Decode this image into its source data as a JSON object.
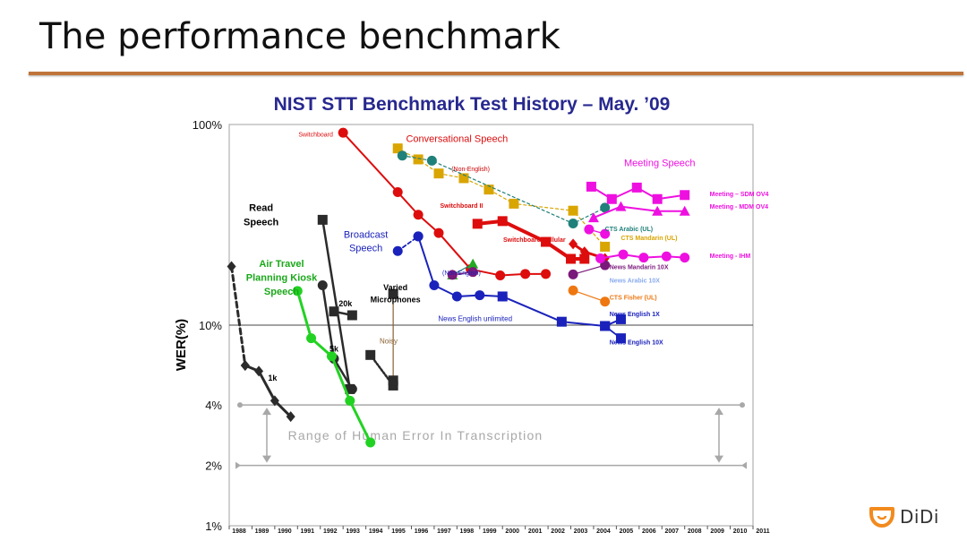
{
  "slide": {
    "title": "The performance benchmark"
  },
  "logo": {
    "text": "DiDi"
  },
  "chart_data": {
    "type": "line",
    "title": "NIST STT Benchmark Test History – May. ’09",
    "ylabel": "WER(%)",
    "yscale": "log",
    "ylim": [
      1,
      100
    ],
    "xlim": [
      1988,
      2011
    ],
    "x_ticks": [
      "1988",
      "1989",
      "1990",
      "1991",
      "1992",
      "1993",
      "1994",
      "1995",
      "1996",
      "1997",
      "1998",
      "1999",
      "2000",
      "2001",
      "2002",
      "2003",
      "2004",
      "2005",
      "2006",
      "2007",
      "2008",
      "2009",
      "2010",
      "2011"
    ],
    "y_ticks": [
      {
        "label": "100%",
        "value": 100
      },
      {
        "label": "10%",
        "value": 10
      },
      {
        "label": "4%",
        "value": 4
      },
      {
        "label": "2%",
        "value": 2
      },
      {
        "label": "1%",
        "value": 1
      }
    ],
    "human_range": {
      "label": "Range of Human Error In Transcription",
      "low": 2,
      "high": 4
    },
    "colors": {
      "title": "#27288f",
      "frame": "#b0b0b0",
      "read": "#2b2b2b",
      "kiosk": "#22d222",
      "switchboard": "#dd0d0d",
      "broadcast": "#1a22bb",
      "meeting": "#ee10e0",
      "cts": "#d9a500",
      "teal": "#20807a",
      "purple": "#7a1a7a",
      "fisher": "#ee7711",
      "brown": "#8a6030"
    },
    "annotations": [
      {
        "text": "Read",
        "x": 1989.4,
        "y": 37,
        "color": "#000000",
        "size": 11,
        "bold": true
      },
      {
        "text": "Speech",
        "x": 1989.4,
        "y": 31.5,
        "color": "#000000",
        "size": 11,
        "bold": true
      },
      {
        "text": "Air Travel",
        "x": 1990.3,
        "y": 19.5,
        "color": "#1aa81a",
        "size": 11,
        "bold": true
      },
      {
        "text": "Planning Kiosk",
        "x": 1990.3,
        "y": 16.6,
        "color": "#1aa81a",
        "size": 11,
        "bold": true
      },
      {
        "text": "Speech",
        "x": 1990.3,
        "y": 14.2,
        "color": "#1aa81a",
        "size": 11,
        "bold": true
      },
      {
        "text": "Broadcast",
        "x": 1994.0,
        "y": 27.2,
        "color": "#1a22bb",
        "size": 11,
        "bold": false
      },
      {
        "text": "Speech",
        "x": 1994.0,
        "y": 23.3,
        "color": "#1a22bb",
        "size": 11,
        "bold": false
      },
      {
        "text": "Varied",
        "x": 1995.3,
        "y": 14.9,
        "color": "#000000",
        "size": 9,
        "bold": true
      },
      {
        "text": "Microphones",
        "x": 1995.3,
        "y": 13.0,
        "color": "#000000",
        "size": 9,
        "bold": true
      },
      {
        "text": "Conversational Speech",
        "x": 1998.0,
        "y": 82,
        "color": "#dd0d0d",
        "size": 11,
        "bold": false
      },
      {
        "text": "Meeting Speech",
        "x": 2006.9,
        "y": 62,
        "color": "#ee10e0",
        "size": 11,
        "bold": false
      },
      {
        "text": "Switchboard",
        "x": 1991.8,
        "y": 87,
        "color": "#dd0d0d",
        "size": 7,
        "bold": false
      },
      {
        "text": "(Non-English)",
        "x": 1998.6,
        "y": 58.5,
        "color": "#cc0000",
        "size": 7,
        "bold": false
      },
      {
        "text": "Switchboard II",
        "x": 1998.2,
        "y": 38.5,
        "color": "#dd0d0d",
        "size": 7,
        "bold": true
      },
      {
        "text": "Switchboard Cellular",
        "x": 2001.4,
        "y": 26,
        "color": "#dd0d0d",
        "size": 7,
        "bold": true
      },
      {
        "text": "(Non-English)",
        "x": 1998.2,
        "y": 17.8,
        "color": "#1a22bb",
        "size": 7,
        "bold": false
      },
      {
        "text": "News English unlimited",
        "x": 1998.8,
        "y": 10.5,
        "color": "#1a22bb",
        "size": 8,
        "bold": false
      },
      {
        "text": "Noisy",
        "x": 1995.0,
        "y": 8.1,
        "color": "#8a6030",
        "size": 8,
        "bold": false
      },
      {
        "text": "20k",
        "x": 1993.1,
        "y": 12.4,
        "color": "#000000",
        "size": 9,
        "bold": true
      },
      {
        "text": "5k",
        "x": 1992.6,
        "y": 7.4,
        "color": "#000000",
        "size": 9,
        "bold": true
      },
      {
        "text": "1k",
        "x": 1989.9,
        "y": 5.3,
        "color": "#000000",
        "size": 9,
        "bold": true
      }
    ],
    "series_labels": [
      {
        "text": "Meeting – SDM OV4",
        "x": 2009.1,
        "y": 44,
        "color": "#ee10e0"
      },
      {
        "text": "Meeting - MDM OV4",
        "x": 2009.1,
        "y": 38,
        "color": "#ee10e0"
      },
      {
        "text": "Meeting - IHM",
        "x": 2009.1,
        "y": 21.6,
        "color": "#ee10e0"
      },
      {
        "text": "CTS Arabic (UL)",
        "x": 2004.5,
        "y": 29.4,
        "color": "#20807a"
      },
      {
        "text": "CTS Mandarin (UL)",
        "x": 2005.2,
        "y": 26.6,
        "color": "#d9a500"
      },
      {
        "text": "News Mandarin 10X",
        "x": 2004.7,
        "y": 19.0,
        "color": "#7a1a7a"
      },
      {
        "text": "News Arabic 10X",
        "x": 2004.7,
        "y": 16.3,
        "color": "#88aaee"
      },
      {
        "text": "CTS Fisher (UL)",
        "x": 2004.7,
        "y": 13.4,
        "color": "#ee7711"
      },
      {
        "text": "News English 1X",
        "x": 2004.7,
        "y": 11.1,
        "color": "#1a22bb"
      },
      {
        "text": "News English 10X",
        "x": 2004.7,
        "y": 8.0,
        "color": "#1a22bb"
      }
    ],
    "series": [
      {
        "color": "#2b2b2b",
        "marker": "diamond",
        "dash": "6,4",
        "width": 3,
        "points": [
          [
            1988.1,
            19.6
          ],
          [
            1988.7,
            6.3
          ]
        ]
      },
      {
        "color": "#2b2b2b",
        "marker": "diamond",
        "dash": "",
        "width": 3,
        "points": [
          [
            1988.7,
            6.3
          ],
          [
            1989.3,
            5.9
          ],
          [
            1990.0,
            4.2
          ],
          [
            1990.7,
            3.5
          ]
        ]
      },
      {
        "color": "#2b2b2b",
        "marker": "square",
        "dash": "",
        "width": 2.5,
        "points": [
          [
            1992.1,
            33.5
          ],
          [
            1993.3,
            4.8
          ]
        ]
      },
      {
        "color": "#2b2b2b",
        "marker": "square",
        "dash": "",
        "width": 2.5,
        "points": [
          [
            1992.6,
            11.7
          ],
          [
            1993.4,
            11.2
          ]
        ]
      },
      {
        "color": "#2b2b2b",
        "marker": "circle",
        "dash": "",
        "width": 2.5,
        "points": [
          [
            1992.1,
            15.8
          ],
          [
            1992.6,
            6.8
          ],
          [
            1993.4,
            4.8
          ]
        ]
      },
      {
        "color": "#2b2b2b",
        "marker": "square",
        "dash": "2,2",
        "width": 2.5,
        "points": [
          [
            1994.2,
            7.1
          ],
          [
            1995.2,
            5.0
          ]
        ]
      },
      {
        "color": "#8a6030",
        "marker": "square",
        "dash": "",
        "width": 1.2,
        "points": [
          [
            1995.2,
            14.3
          ],
          [
            1995.2,
            5.3
          ]
        ],
        "marker_color": "#2b2b2b"
      },
      {
        "color": "#22d222",
        "marker": "circle",
        "dash": "",
        "width": 3,
        "points": [
          [
            1991.0,
            14.8
          ],
          [
            1991.6,
            8.6
          ],
          [
            1992.5,
            7.0
          ],
          [
            1993.3,
            4.2
          ],
          [
            1994.2,
            2.6
          ]
        ]
      },
      {
        "color": "#dd0d0d",
        "marker": "circle",
        "dash": "",
        "width": 2,
        "points": [
          [
            1993.0,
            91
          ],
          [
            1995.4,
            46
          ],
          [
            1996.3,
            35.5
          ],
          [
            1997.2,
            28.8
          ],
          [
            1998.6,
            19.0
          ],
          [
            1999.9,
            17.7
          ],
          [
            2001.0,
            18.0
          ],
          [
            2001.9,
            18.0
          ]
        ]
      },
      {
        "color": "#dd0d0d",
        "marker": "square",
        "dash": "",
        "width": 4,
        "points": [
          [
            1998.9,
            32.0
          ],
          [
            2000.0,
            33.0
          ],
          [
            2001.9,
            26.0
          ],
          [
            2003.0,
            21.4
          ],
          [
            2003.6,
            21.4
          ]
        ]
      },
      {
        "color": "#dd0d0d",
        "marker": "diamond",
        "dash": "",
        "width": 3,
        "points": [
          [
            2003.1,
            25.4
          ],
          [
            2003.6,
            23.2
          ],
          [
            2004.5,
            21.5
          ]
        ]
      },
      {
        "color": "#1a22bb",
        "marker": "circle",
        "dash": "4,3",
        "width": 1.8,
        "points": [
          [
            1995.4,
            23.4
          ],
          [
            1996.3,
            27.7
          ]
        ]
      },
      {
        "color": "#1a22bb",
        "marker": "circle",
        "dash": "",
        "width": 2,
        "points": [
          [
            1996.3,
            27.7
          ],
          [
            1997.0,
            15.8
          ],
          [
            1998.0,
            13.9
          ],
          [
            1999.0,
            14.1
          ],
          [
            2000.0,
            13.9
          ]
        ]
      },
      {
        "color": "#1a22bb",
        "marker": "square",
        "dash": "",
        "width": 2,
        "points": [
          [
            2000.0,
            13.9
          ],
          [
            2002.6,
            10.4
          ],
          [
            2004.5,
            9.9
          ],
          [
            2005.2,
            10.7
          ]
        ]
      },
      {
        "color": "#1a22bb",
        "marker": "square",
        "dash": "",
        "width": 1.8,
        "points": [
          [
            2004.5,
            9.9
          ],
          [
            2005.2,
            8.6
          ]
        ]
      },
      {
        "color": "#20807a",
        "marker": "triangle",
        "dash": "",
        "width": 1.2,
        "points": [
          [
            1997.8,
            17.8
          ],
          [
            1998.7,
            20.2
          ]
        ],
        "marker_color": "#22aa22"
      },
      {
        "color": "#7a1a7a",
        "marker": "circle",
        "dash": "",
        "width": 1.4,
        "points": [
          [
            1997.8,
            17.8
          ],
          [
            1998.7,
            18.4
          ]
        ]
      },
      {
        "color": "#d9a500",
        "marker": "square",
        "dash": "3,3",
        "width": 1.2,
        "points": [
          [
            1995.4,
            76
          ],
          [
            1996.3,
            67
          ],
          [
            1997.2,
            57
          ],
          [
            1998.3,
            54
          ],
          [
            1999.4,
            47.4
          ],
          [
            2000.5,
            40.3
          ],
          [
            2003.1,
            37.2
          ],
          [
            2004.5,
            24.6
          ]
        ]
      },
      {
        "color": "#20807a",
        "marker": "circle",
        "dash": "3,3",
        "width": 1.2,
        "points": [
          [
            1995.6,
            70
          ],
          [
            1996.9,
            66
          ],
          [
            2003.1,
            32.1
          ],
          [
            2004.5,
            38.5
          ]
        ]
      },
      {
        "color": "#7a1a7a",
        "marker": "circle",
        "dash": "",
        "width": 1.2,
        "points": [
          [
            2003.1,
            17.9
          ],
          [
            2004.5,
            19.9
          ]
        ]
      },
      {
        "color": "#ee7711",
        "marker": "circle",
        "dash": "",
        "width": 1.2,
        "points": [
          [
            2003.1,
            14.9
          ],
          [
            2004.5,
            13.1
          ]
        ]
      },
      {
        "color": "#ee10e0",
        "marker": "circle",
        "dash": "",
        "width": 1.2,
        "points": [
          [
            2003.8,
            30.0
          ],
          [
            2004.5,
            28.5
          ]
        ]
      },
      {
        "color": "#ee10e0",
        "marker": "square",
        "dash": "",
        "width": 2,
        "points": [
          [
            2003.9,
            49.0
          ],
          [
            2004.8,
            42.5
          ],
          [
            2005.9,
            48.5
          ],
          [
            2006.8,
            42.5
          ],
          [
            2008.0,
            44.5
          ]
        ]
      },
      {
        "color": "#ee10e0",
        "marker": "triangle",
        "dash": "",
        "width": 2,
        "points": [
          [
            2004.0,
            34.3
          ],
          [
            2005.2,
            39.0
          ],
          [
            2006.8,
            37.0
          ],
          [
            2008.0,
            37.0
          ]
        ]
      },
      {
        "color": "#ee10e0",
        "marker": "circle",
        "dash": "",
        "width": 2,
        "points": [
          [
            2004.3,
            21.5
          ],
          [
            2005.3,
            22.5
          ],
          [
            2006.2,
            21.7
          ],
          [
            2007.2,
            22.0
          ],
          [
            2008.0,
            21.7
          ]
        ]
      }
    ]
  }
}
